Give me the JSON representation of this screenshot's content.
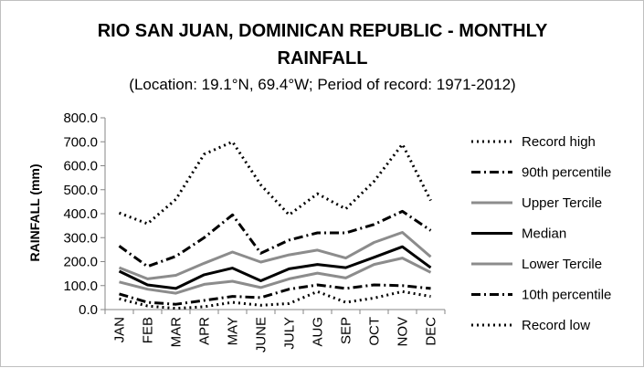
{
  "chart_data": {
    "type": "line",
    "title_line1": "RIO SAN JUAN, DOMINICAN REPUBLIC - MONTHLY",
    "title_line2": "RAINFALL",
    "subtitle": "(Location: 19.1°N, 69.4°W; Period of record: 1971-2012)",
    "ylabel": "RAINFALL (mm)",
    "xlabel": "",
    "categories": [
      "JAN",
      "FEB",
      "MAR",
      "APR",
      "MAY",
      "JUNE",
      "JULY",
      "AUG",
      "SEP",
      "OCT",
      "NOV",
      "DEC"
    ],
    "ylim": [
      0,
      800
    ],
    "yticks": [
      "0.0",
      "100.0",
      "200.0",
      "300.0",
      "400.0",
      "500.0",
      "600.0",
      "700.0",
      "800.0"
    ],
    "grid": false,
    "legend_position": "right",
    "series": [
      {
        "name": "Record high",
        "style": "dotted",
        "color": "#000000",
        "values": [
          403,
          358,
          460,
          648,
          700,
          520,
          395,
          483,
          420,
          535,
          690,
          455
        ]
      },
      {
        "name": "90th percentile",
        "style": "dashdot",
        "color": "#000000",
        "values": [
          265,
          180,
          222,
          300,
          395,
          235,
          290,
          320,
          320,
          355,
          410,
          330
        ]
      },
      {
        "name": "Upper Tercile",
        "style": "solid",
        "color": "#8c8c8c",
        "values": [
          175,
          128,
          143,
          193,
          240,
          198,
          228,
          248,
          215,
          280,
          322,
          220
        ]
      },
      {
        "name": "Median",
        "style": "solid",
        "color": "#000000",
        "values": [
          160,
          103,
          88,
          145,
          173,
          120,
          170,
          188,
          175,
          218,
          262,
          175
        ]
      },
      {
        "name": "Lower Tercile",
        "style": "solid",
        "color": "#8c8c8c",
        "values": [
          115,
          85,
          68,
          105,
          118,
          92,
          128,
          152,
          132,
          188,
          215,
          155
        ]
      },
      {
        "name": "10th percentile",
        "style": "dashdot",
        "color": "#000000",
        "values": [
          65,
          30,
          22,
          38,
          55,
          50,
          85,
          103,
          88,
          103,
          100,
          88
        ]
      },
      {
        "name": "Record low",
        "style": "dotted",
        "color": "#000000",
        "values": [
          45,
          15,
          5,
          12,
          30,
          18,
          25,
          75,
          30,
          48,
          75,
          55
        ]
      }
    ]
  }
}
